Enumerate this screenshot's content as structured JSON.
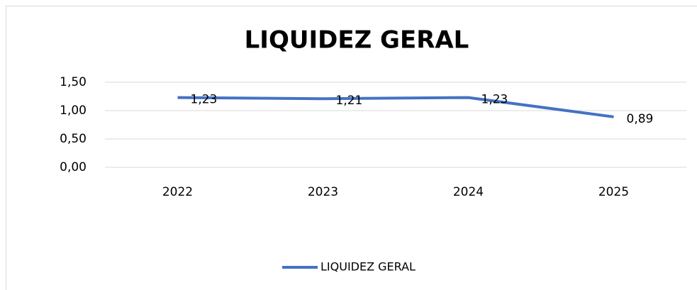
{
  "chart_data": {
    "type": "line",
    "title": "LIQUIDEZ GERAL",
    "categories": [
      "2022",
      "2023",
      "2024",
      "2025"
    ],
    "series": [
      {
        "name": "LIQUIDEZ GERAL",
        "color": "#4472c4",
        "values": [
          1.23,
          1.21,
          1.23,
          0.89
        ],
        "value_labels": [
          "1,23",
          "1,21",
          "1,23",
          "0,89"
        ]
      }
    ],
    "ylim": [
      0,
      1.5
    ],
    "yticks": [
      {
        "value": 0,
        "label": "0,00"
      },
      {
        "value": 0.5,
        "label": "0,50"
      },
      {
        "value": 1,
        "label": "1,00"
      },
      {
        "value": 1.5,
        "label": "1,50"
      }
    ],
    "grid": true,
    "legend": "bottom"
  }
}
